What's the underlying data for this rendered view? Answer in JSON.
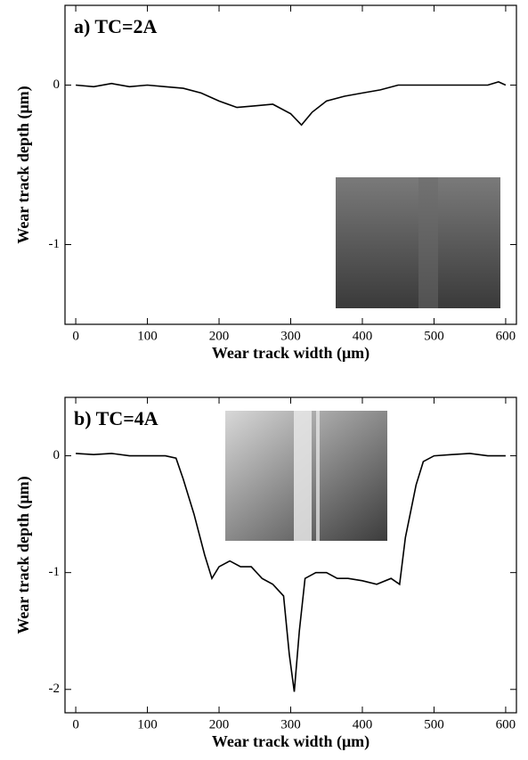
{
  "chart_data": [
    {
      "type": "line",
      "annotation": "a) TC=2A",
      "xlabel": "Wear track width (μm)",
      "ylabel": "Wear track depth (μm)",
      "x": [
        0,
        25,
        50,
        75,
        100,
        125,
        150,
        175,
        200,
        225,
        250,
        275,
        300,
        315,
        330,
        350,
        375,
        400,
        425,
        450,
        475,
        500,
        525,
        550,
        575,
        590,
        600
      ],
      "values": [
        0,
        -0.01,
        0.01,
        -0.01,
        0,
        -0.01,
        -0.02,
        -0.05,
        -0.1,
        -0.14,
        -0.13,
        -0.12,
        -0.18,
        -0.25,
        -0.17,
        -0.1,
        -0.07,
        -0.05,
        -0.03,
        0,
        0,
        0,
        0,
        0,
        0,
        0.02,
        0
      ],
      "color": "#000000",
      "xlim": [
        -15,
        615
      ],
      "xticks": [
        0,
        100,
        200,
        300,
        400,
        500,
        600
      ],
      "ylim": [
        -1.5,
        0.5
      ],
      "yticks": [
        -1,
        0
      ]
    },
    {
      "type": "line",
      "annotation": "b) TC=4A",
      "xlabel": "Wear track width (μm)",
      "ylabel": "Wear track depth (μm)",
      "x": [
        0,
        25,
        50,
        75,
        100,
        125,
        140,
        150,
        165,
        180,
        190,
        200,
        215,
        230,
        245,
        260,
        275,
        290,
        298,
        305,
        312,
        320,
        335,
        350,
        365,
        380,
        400,
        420,
        440,
        452,
        460,
        475,
        485,
        500,
        525,
        550,
        575,
        600
      ],
      "values": [
        0.02,
        0.01,
        0.02,
        0,
        0,
        0,
        -0.02,
        -0.2,
        -0.5,
        -0.85,
        -1.05,
        -0.95,
        -0.9,
        -0.95,
        -0.95,
        -1.05,
        -1.1,
        -1.2,
        -1.7,
        -2.02,
        -1.5,
        -1.05,
        -1.0,
        -1.0,
        -1.05,
        -1.05,
        -1.07,
        -1.1,
        -1.05,
        -1.1,
        -0.7,
        -0.25,
        -0.05,
        0,
        0.01,
        0.02,
        0,
        0
      ],
      "color": "#000000",
      "xlim": [
        -15,
        615
      ],
      "xticks": [
        0,
        100,
        200,
        300,
        400,
        500,
        600
      ],
      "ylim": [
        -2.2,
        0.5
      ],
      "yticks": [
        -2,
        -1,
        0
      ]
    }
  ]
}
